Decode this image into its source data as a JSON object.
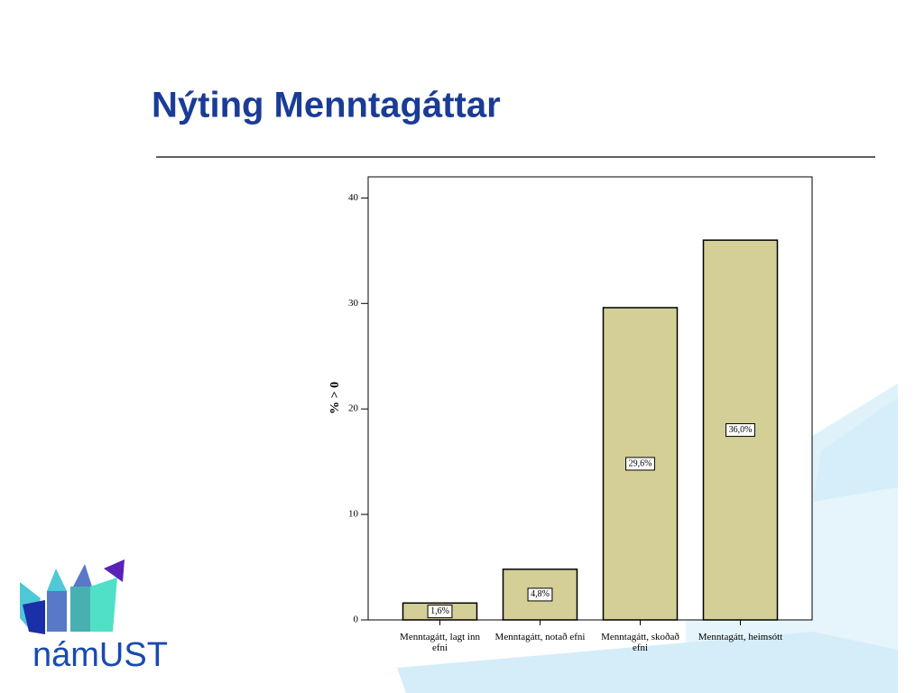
{
  "chart_data": {
    "type": "bar",
    "title": "Nýting Menntagáttar",
    "y_label": "% > 0",
    "categories": [
      "Menntagátt, lagt inn efni",
      "Menntagátt, notað efni",
      "Menntagátt, skoðað efni",
      "Menntagátt, heimsótt"
    ],
    "values": [
      1.6,
      4.8,
      29.6,
      36.0
    ],
    "value_labels": [
      "1,6%",
      "4,8%",
      "29,6%",
      "36,0%"
    ],
    "color": "#d3cf96",
    "ylim": [
      0,
      42
    ],
    "yticks": [
      0,
      10,
      20,
      30,
      40
    ],
    "grid": false
  },
  "logo": {
    "text": "námUST"
  }
}
